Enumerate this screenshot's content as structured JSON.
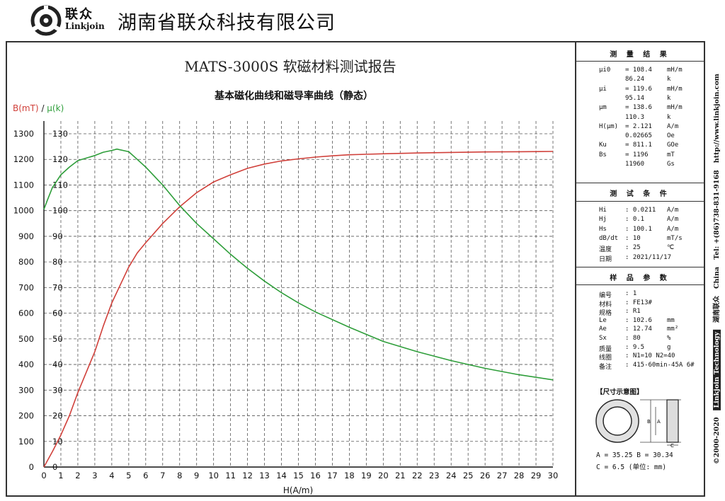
{
  "header": {
    "logo_cn": "联众",
    "logo_en": "Linkjoin",
    "company": "湖南省联众科技有限公司"
  },
  "chart_data": {
    "type": "line",
    "title": "MATS-3000S 软磁材料测试报告",
    "subtitle": "基本磁化曲线和磁导率曲线（静态）",
    "ylabel_b": "B(mT)",
    "ylabel_sep": " / ",
    "ylabel_mu": "μ(k)",
    "xlabel": "H(A/m)",
    "xlim": [
      0,
      30
    ],
    "ylim_b": [
      0,
      1300
    ],
    "ylim_mu": [
      0,
      130
    ],
    "x_ticks": [
      "0",
      "1",
      "2",
      "3",
      "4",
      "5",
      "6",
      "7",
      "8",
      "9",
      "10",
      "11",
      "12",
      "13",
      "14",
      "15",
      "16",
      "17",
      "18",
      "19",
      "20",
      "21",
      "22",
      "23",
      "24",
      "25",
      "26",
      "27",
      "28",
      "29",
      "30"
    ],
    "yb_ticks": [
      "0",
      "100",
      "200",
      "300",
      "400",
      "500",
      "600",
      "700",
      "800",
      "900",
      "1000",
      "1100",
      "1200",
      "1300"
    ],
    "ymu_ticks": [
      "0",
      "10",
      "20",
      "30",
      "40",
      "50",
      "60",
      "70",
      "80",
      "90",
      "100",
      "110",
      "120",
      "130"
    ],
    "grid": true,
    "colors": {
      "b": "#d0403a",
      "mu": "#2e9e3a",
      "text": "#111111"
    },
    "series": [
      {
        "name": "B(mT)",
        "axis": "b",
        "x": [
          0,
          0.5,
          1,
          1.5,
          2,
          2.5,
          3,
          3.5,
          4,
          4.5,
          5,
          5.5,
          6,
          7,
          8,
          9,
          10,
          11,
          12,
          13,
          14,
          15,
          16,
          17,
          18,
          19,
          20,
          22,
          24,
          26,
          28,
          30
        ],
        "y": [
          0,
          60,
          125,
          200,
          290,
          370,
          450,
          550,
          640,
          710,
          780,
          835,
          875,
          950,
          1015,
          1070,
          1112,
          1140,
          1165,
          1182,
          1194,
          1202,
          1209,
          1214,
          1218,
          1220,
          1222,
          1225,
          1227,
          1229,
          1230,
          1231
        ]
      },
      {
        "name": "μ(k)",
        "axis": "mu",
        "x": [
          0,
          0.2,
          0.5,
          1,
          1.5,
          2,
          2.5,
          3,
          3.5,
          4,
          4.3,
          5,
          5.5,
          6,
          7,
          8,
          9,
          10,
          11,
          12,
          13,
          14,
          15,
          16,
          18,
          20,
          22,
          24,
          26,
          28,
          30
        ],
        "y": [
          100.5,
          104,
          109,
          114,
          117,
          119.5,
          120.5,
          121.5,
          122.8,
          123.5,
          124,
          123,
          120,
          117,
          110,
          102,
          95,
          89,
          83,
          77.5,
          72.5,
          68,
          64,
          60.5,
          54.5,
          49,
          45,
          41.5,
          38.5,
          36,
          34
        ]
      }
    ]
  },
  "panel": {
    "results": {
      "title": "测 量 结 果",
      "rows": [
        {
          "label": "μi0",
          "value": "= 108.4",
          "unit": "mH/m"
        },
        {
          "label": "",
          "value": "  86.24",
          "unit": "k"
        },
        {
          "label": "μi",
          "value": "= 119.6",
          "unit": "mH/m"
        },
        {
          "label": "",
          "value": "  95.14",
          "unit": "k"
        },
        {
          "label": "μm",
          "value": "= 138.6",
          "unit": "mH/m"
        },
        {
          "label": "",
          "value": "  110.3",
          "unit": "k"
        },
        {
          "label": "H(μm)",
          "value": "= 2.121",
          "unit": "A/m"
        },
        {
          "label": "",
          "value": "  0.02665",
          "unit": "Oe"
        },
        {
          "label": "Ku",
          "value": "= 811.1",
          "unit": "GOe"
        },
        {
          "label": "Bs",
          "value": "= 1196",
          "unit": "mT"
        },
        {
          "label": "",
          "value": "  11960",
          "unit": "Gs"
        }
      ]
    },
    "conditions": {
      "title": "测 试 条 件",
      "rows": [
        {
          "label": "Hi",
          "value": ": 0.0211",
          "unit": "A/m"
        },
        {
          "label": "Hj",
          "value": ": 0.1",
          "unit": "A/m"
        },
        {
          "label": "Hs",
          "value": ": 100.1",
          "unit": "A/m"
        },
        {
          "label": "dB/dt",
          "value": ": 10",
          "unit": "mT/s"
        },
        {
          "label": "温度",
          "value": ": 25",
          "unit": "℃"
        },
        {
          "label": "日期",
          "value": ": 2021/11/17",
          "unit": ""
        }
      ]
    },
    "sample": {
      "title": "样 品 参 数",
      "rows": [
        {
          "label": "编号",
          "value": ": 1",
          "unit": ""
        },
        {
          "label": "材料",
          "value": ": FE13#",
          "unit": ""
        },
        {
          "label": "规格",
          "value": ": R1",
          "unit": ""
        },
        {
          "label": "Le",
          "value": ": 102.6",
          "unit": "mm"
        },
        {
          "label": "Ae",
          "value": ": 12.74",
          "unit": "mm²"
        },
        {
          "label": "Sx",
          "value": ": 80",
          "unit": "%"
        },
        {
          "label": "质量",
          "value": ": 9.5",
          "unit": "g"
        },
        {
          "label": "线圈",
          "value": ": N1=10 N2=40",
          "unit": ""
        },
        {
          "label": "备注",
          "value": ": 415-60min-45A 6#",
          "unit": ""
        }
      ]
    },
    "dimensions": {
      "title": "【尺寸示意图】",
      "label_b": "B",
      "label_a": "A",
      "label_c": "C",
      "row1": "A = 35.25  B = 30.34",
      "row2": "C = 6.5    (单位: mm)"
    }
  },
  "side_text": {
    "copyright": "©2000-2020",
    "tech": "Linkjoin Technology",
    "cn": "湖南联众",
    "china": "China",
    "tel": "Tel: +(86)738-831-9168",
    "url": "http://www.linkjoin.com"
  }
}
